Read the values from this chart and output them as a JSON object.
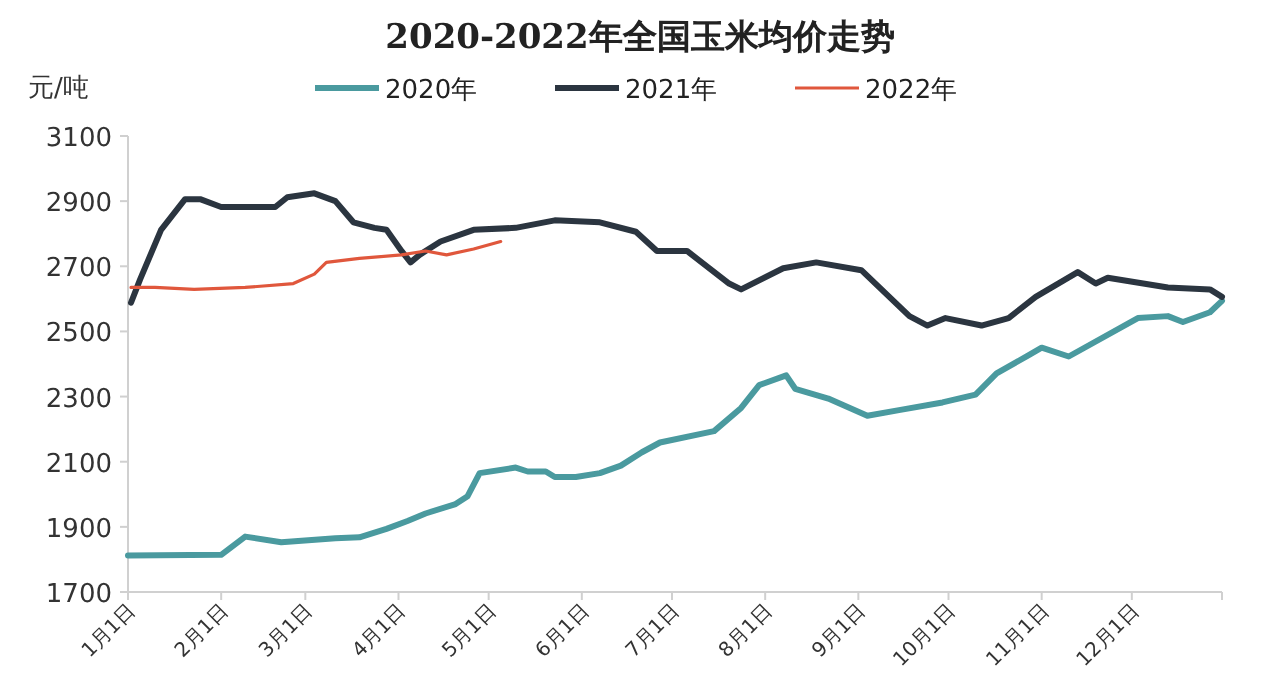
{
  "chart_data": {
    "type": "line",
    "title": "2020-2022年全国玉米均价走势",
    "ylabel": "元/吨",
    "xlim": [
      "--01-01",
      "--12-31"
    ],
    "xticks": [
      {
        "value": "--01-01",
        "label": "1月1日"
      },
      {
        "value": "--02-01",
        "label": "2月1日"
      },
      {
        "value": "--03-01",
        "label": "3月1日"
      },
      {
        "value": "--04-01",
        "label": "4月1日"
      },
      {
        "value": "--05-01",
        "label": "5月1日"
      },
      {
        "value": "--06-01",
        "label": "6月1日"
      },
      {
        "value": "--07-01",
        "label": "7月1日"
      },
      {
        "value": "--08-01",
        "label": "8月1日"
      },
      {
        "value": "--09-01",
        "label": "9月1日"
      },
      {
        "value": "--10-01",
        "label": "10月1日"
      },
      {
        "value": "--11-01",
        "label": "11月1日"
      },
      {
        "value": "--12-01",
        "label": "12月1日"
      }
    ],
    "ylim": [
      1700,
      3100
    ],
    "yticks": [
      1700,
      1900,
      2100,
      2300,
      2500,
      2700,
      2900,
      3100
    ],
    "legend": "top",
    "grid": false,
    "marker": "none",
    "line_style": "solid",
    "series": [
      {
        "name": "2020年",
        "color": "#4a9a9f",
        "x": [
          "--01-01",
          "--02-01",
          "--02-09",
          "--02-21",
          "--03-11",
          "--03-19",
          "--03-28",
          "--04-04",
          "--04-10",
          "--04-20",
          "--04-24",
          "--04-28",
          "--05-10",
          "--05-14",
          "--05-20",
          "--05-23",
          "--05-30",
          "--06-07",
          "--06-14",
          "--06-21",
          "--06-27",
          "--07-15",
          "--07-24",
          "--07-30",
          "--08-08",
          "--08-11",
          "--08-22",
          "--09-04",
          "--09-15",
          "--09-29",
          "--10-10",
          "--10-17",
          "--10-28",
          "--11-01",
          "--11-10",
          "--12-03",
          "--12-13",
          "--12-18",
          "--12-27",
          "--12-31"
        ],
        "values": [
          1812,
          1814,
          1870,
          1853,
          1865,
          1868,
          1894,
          1918,
          1941,
          1970,
          1994,
          2065,
          2082,
          2070,
          2070,
          2053,
          2053,
          2065,
          2088,
          2129,
          2159,
          2194,
          2265,
          2335,
          2365,
          2324,
          2294,
          2241,
          2259,
          2282,
          2306,
          2371,
          2429,
          2450,
          2423,
          2541,
          2547,
          2529,
          2559,
          2594
        ]
      },
      {
        "name": "2021年",
        "color": "#2b3540",
        "x": [
          "--01-02",
          "--01-05",
          "--01-12",
          "--01-20",
          "--01-25",
          "--02-01",
          "--02-19",
          "--02-23",
          "--03-04",
          "--03-11",
          "--03-17",
          "--03-24",
          "--03-28",
          "--04-02",
          "--04-05",
          "--04-08",
          "--04-15",
          "--04-26",
          "--05-10",
          "--05-23",
          "--06-07",
          "--06-19",
          "--06-26",
          "--07-06",
          "--07-20",
          "--07-24",
          "--08-07",
          "--08-18",
          "--09-02",
          "--09-18",
          "--09-24",
          "--09-30",
          "--10-12",
          "--10-21",
          "--10-30",
          "--11-13",
          "--11-19",
          "--11-23",
          "--12-13",
          "--12-27",
          "--12-31"
        ],
        "values": [
          2588,
          2659,
          2812,
          2906,
          2906,
          2882,
          2882,
          2912,
          2924,
          2900,
          2835,
          2818,
          2812,
          2747,
          2712,
          2735,
          2776,
          2812,
          2818,
          2841,
          2835,
          2806,
          2747,
          2747,
          2647,
          2629,
          2694,
          2712,
          2688,
          2547,
          2518,
          2541,
          2518,
          2541,
          2606,
          2682,
          2647,
          2665,
          2635,
          2629,
          2606
        ]
      },
      {
        "name": "2022年",
        "color": "#e0573c",
        "x": [
          "--01-02",
          "--01-10",
          "--01-23",
          "--02-09",
          "--02-25",
          "--03-04",
          "--03-08",
          "--03-19",
          "--04-02",
          "--04-10",
          "--04-17",
          "--04-26",
          "--05-05"
        ],
        "values": [
          2635,
          2635,
          2629,
          2635,
          2647,
          2676,
          2712,
          2724,
          2735,
          2747,
          2735,
          2753,
          2776
        ]
      }
    ]
  }
}
